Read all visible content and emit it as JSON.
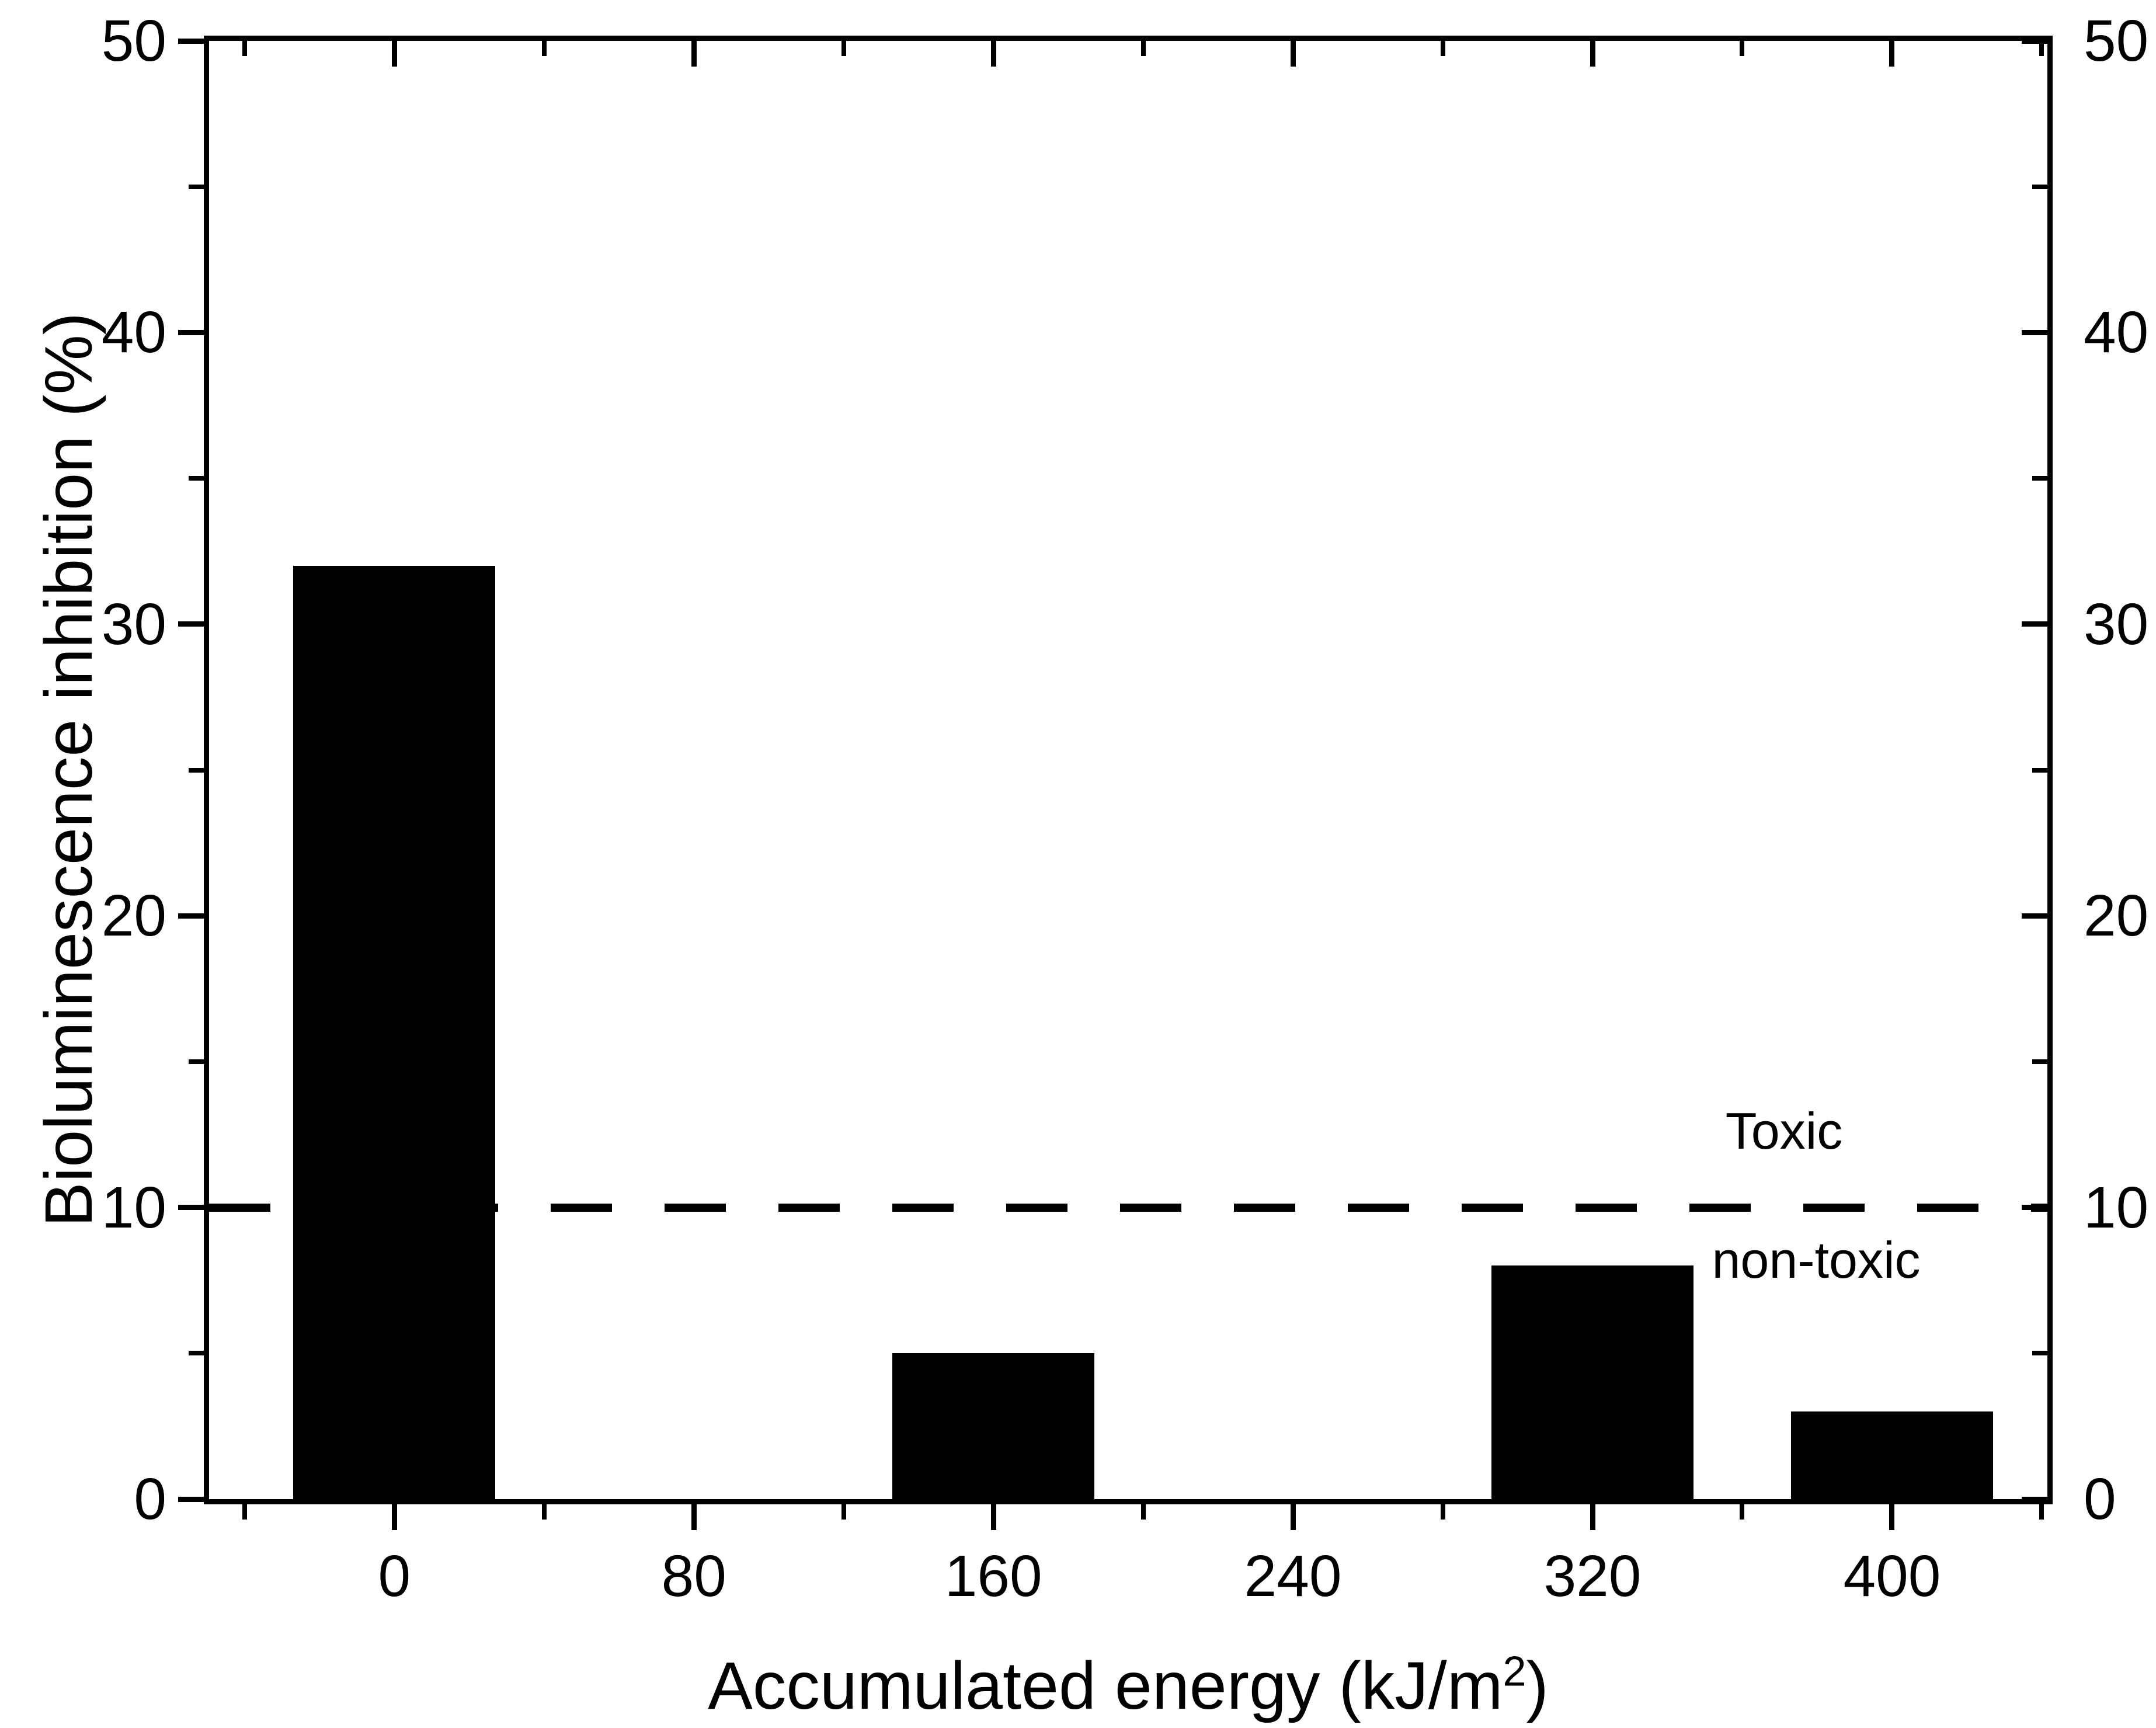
{
  "figure": {
    "background": "#ffffff",
    "ink_color": "#000000"
  },
  "chart_data": {
    "type": "bar",
    "title": "",
    "xlabel": "Accumulated energy (kJ/m²)",
    "xlabel_parts": {
      "prefix": "Accumulated energy (kJ/m",
      "sup": "2",
      "suffix": ")"
    },
    "ylabel": "Bioluminescence inhibition (%)",
    "categories": [
      0,
      80,
      160,
      240,
      320,
      400
    ],
    "values": [
      32,
      0,
      5,
      0,
      8,
      3
    ],
    "bar_color": "#000000",
    "bar_width_x_units": 54,
    "xlim": [
      -49.5,
      441.5
    ],
    "ylim": [
      0,
      50
    ],
    "x_major_ticks": [
      0,
      80,
      160,
      240,
      320,
      400
    ],
    "x_minor_ticks": [
      -40,
      40,
      120,
      200,
      280,
      360,
      440
    ],
    "y_major_ticks": [
      0,
      10,
      20,
      30,
      40,
      50
    ],
    "y_minor_ticks": [
      5,
      15,
      25,
      35,
      45
    ],
    "x_tick_labels": [
      "0",
      "80",
      "160",
      "240",
      "320",
      "400"
    ],
    "y_tick_labels_left": [
      "0",
      "10",
      "20",
      "30",
      "40",
      "50"
    ],
    "y_tick_labels_right": [
      "0",
      "10",
      "20",
      "30",
      "40",
      "50"
    ],
    "grid": false,
    "legend": null,
    "axes_mirrored": true,
    "threshold_line": {
      "value": 10,
      "style": "dashed",
      "color": "#000000",
      "label_above": "Toxic",
      "label_below": "non-toxic"
    }
  }
}
